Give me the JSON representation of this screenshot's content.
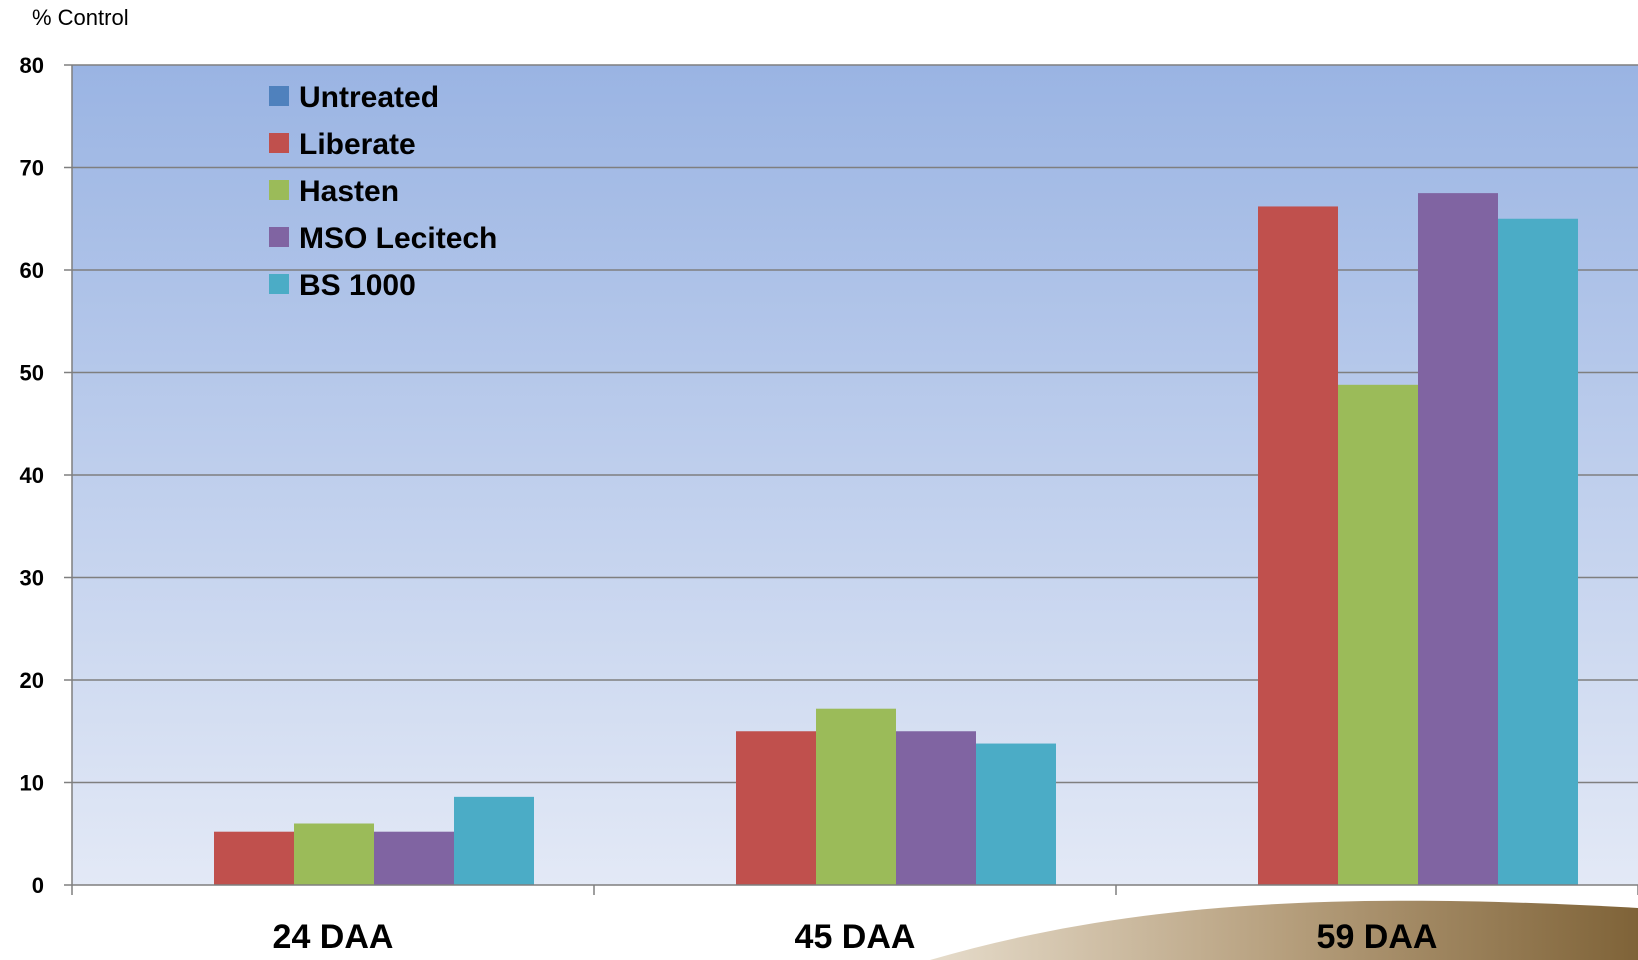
{
  "chart_data": {
    "type": "bar",
    "ylabel": "% Control",
    "ylim": [
      0,
      80
    ],
    "yticks": [
      0,
      10,
      20,
      30,
      40,
      50,
      60,
      70,
      80
    ],
    "grid": true,
    "legend_position": "top-left",
    "categories": [
      "24 DAA",
      "45 DAA",
      "59 DAA"
    ],
    "series": [
      {
        "name": "Untreated",
        "color": "#4F81BD",
        "values": [
          0,
          0,
          0
        ]
      },
      {
        "name": "Liberate",
        "color": "#C0504D",
        "values": [
          5.2,
          15.0,
          66.2
        ]
      },
      {
        "name": "Hasten",
        "color": "#9BBB59",
        "values": [
          6.0,
          17.2,
          48.8
        ]
      },
      {
        "name": "MSO Lecitech",
        "color": "#8064A2",
        "values": [
          5.2,
          15.0,
          67.5
        ]
      },
      {
        "name": "BS 1000",
        "color": "#4BACC6",
        "values": [
          8.6,
          13.8,
          65.0
        ]
      }
    ]
  }
}
